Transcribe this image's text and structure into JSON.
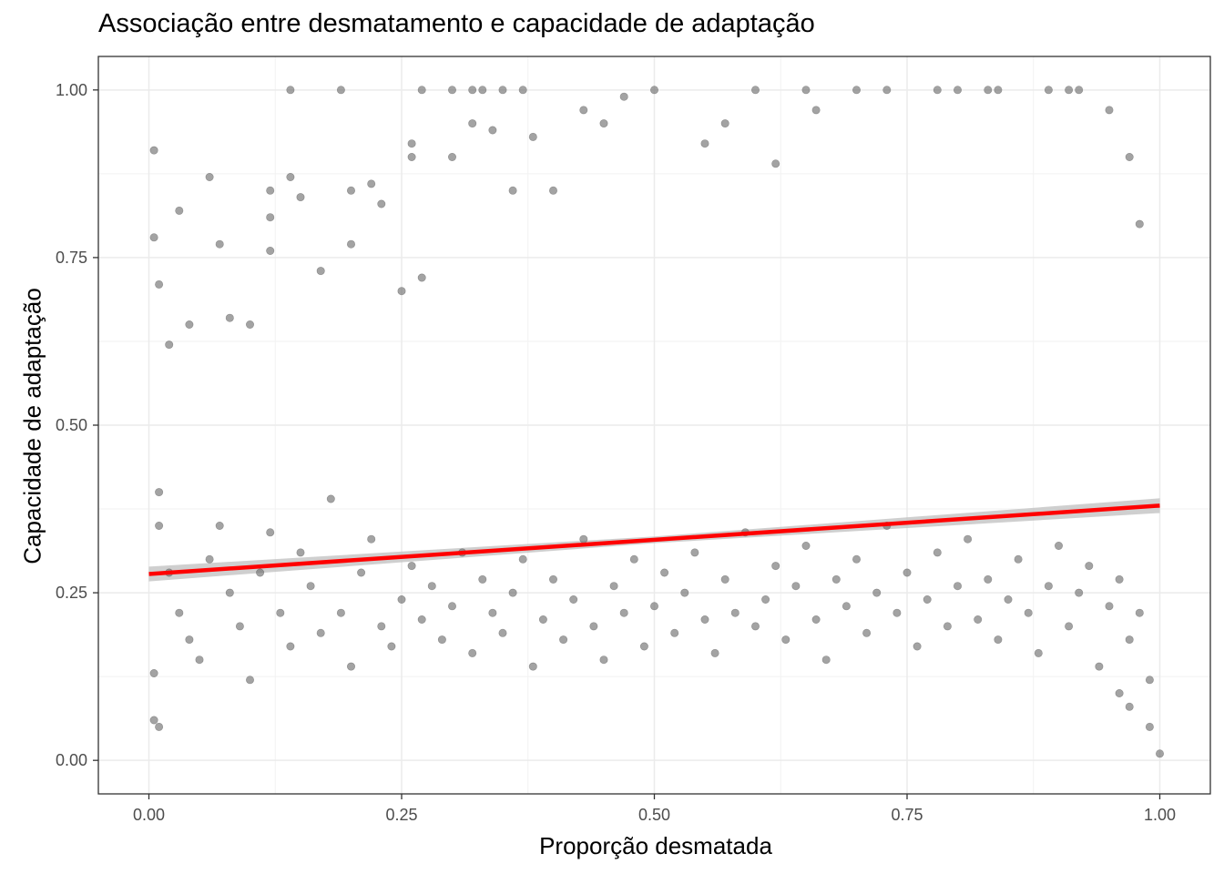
{
  "chart_data": {
    "type": "scatter",
    "title": "Associação entre desmatamento e capacidade de adaptação",
    "xlabel": "Proporção desmatada",
    "ylabel": "Capacidade de adaptação",
    "xlim": [
      -0.05,
      1.05
    ],
    "ylim": [
      -0.05,
      1.05
    ],
    "x_ticks": [
      0.0,
      0.25,
      0.5,
      0.75,
      1.0
    ],
    "x_tick_labels": [
      "0.00",
      "0.25",
      "0.50",
      "0.75",
      "1.00"
    ],
    "y_ticks": [
      0.0,
      0.25,
      0.5,
      0.75,
      1.0
    ],
    "y_tick_labels": [
      "0.00",
      "0.25",
      "0.50",
      "0.75",
      "1.00"
    ],
    "grid": true,
    "legend": "none",
    "point_color": "#666666",
    "point_opacity": 0.6,
    "trend_line": {
      "method": "linear",
      "color": "#ff0000",
      "ribbon_color": "#bfbfbf",
      "points": [
        {
          "x": 0.0,
          "y": 0.278
        },
        {
          "x": 1.0,
          "y": 0.38
        }
      ]
    },
    "series": [
      {
        "points": [
          [
            0.005,
            0.91
          ],
          [
            0.005,
            0.78
          ],
          [
            0.01,
            0.71
          ],
          [
            0.02,
            0.62
          ],
          [
            0.01,
            0.4
          ],
          [
            0.01,
            0.35
          ],
          [
            0.005,
            0.06
          ],
          [
            0.01,
            0.05
          ],
          [
            0.005,
            0.13
          ],
          [
            0.03,
            0.82
          ],
          [
            0.06,
            0.87
          ],
          [
            0.07,
            0.77
          ],
          [
            0.04,
            0.65
          ],
          [
            0.08,
            0.66
          ],
          [
            0.1,
            0.65
          ],
          [
            0.12,
            0.85
          ],
          [
            0.12,
            0.81
          ],
          [
            0.12,
            0.76
          ],
          [
            0.14,
            0.87
          ],
          [
            0.15,
            0.84
          ],
          [
            0.17,
            0.73
          ],
          [
            0.2,
            0.85
          ],
          [
            0.2,
            0.77
          ],
          [
            0.22,
            0.86
          ],
          [
            0.23,
            0.83
          ],
          [
            0.14,
            1.0
          ],
          [
            0.19,
            1.0
          ],
          [
            0.26,
            0.9
          ],
          [
            0.26,
            0.92
          ],
          [
            0.27,
            1.0
          ],
          [
            0.3,
            1.0
          ],
          [
            0.32,
            1.0
          ],
          [
            0.33,
            1.0
          ],
          [
            0.35,
            1.0
          ],
          [
            0.37,
            1.0
          ],
          [
            0.25,
            0.7
          ],
          [
            0.27,
            0.72
          ],
          [
            0.3,
            0.9
          ],
          [
            0.32,
            0.95
          ],
          [
            0.34,
            0.94
          ],
          [
            0.38,
            0.93
          ],
          [
            0.36,
            0.85
          ],
          [
            0.4,
            0.85
          ],
          [
            0.43,
            0.97
          ],
          [
            0.45,
            0.95
          ],
          [
            0.47,
            0.99
          ],
          [
            0.5,
            1.0
          ],
          [
            0.55,
            0.92
          ],
          [
            0.57,
            0.95
          ],
          [
            0.6,
            1.0
          ],
          [
            0.62,
            0.89
          ],
          [
            0.65,
            1.0
          ],
          [
            0.66,
            0.97
          ],
          [
            0.7,
            1.0
          ],
          [
            0.73,
            1.0
          ],
          [
            0.78,
            1.0
          ],
          [
            0.8,
            1.0
          ],
          [
            0.83,
            1.0
          ],
          [
            0.84,
            1.0
          ],
          [
            0.89,
            1.0
          ],
          [
            0.91,
            1.0
          ],
          [
            0.92,
            1.0
          ],
          [
            0.95,
            0.97
          ],
          [
            0.97,
            0.9
          ],
          [
            0.98,
            0.8
          ],
          [
            0.02,
            0.28
          ],
          [
            0.03,
            0.22
          ],
          [
            0.04,
            0.18
          ],
          [
            0.05,
            0.15
          ],
          [
            0.06,
            0.3
          ],
          [
            0.07,
            0.35
          ],
          [
            0.08,
            0.25
          ],
          [
            0.09,
            0.2
          ],
          [
            0.1,
            0.12
          ],
          [
            0.11,
            0.28
          ],
          [
            0.12,
            0.34
          ],
          [
            0.13,
            0.22
          ],
          [
            0.14,
            0.17
          ],
          [
            0.15,
            0.31
          ],
          [
            0.16,
            0.26
          ],
          [
            0.17,
            0.19
          ],
          [
            0.18,
            0.39
          ],
          [
            0.19,
            0.22
          ],
          [
            0.2,
            0.14
          ],
          [
            0.21,
            0.28
          ],
          [
            0.22,
            0.33
          ],
          [
            0.23,
            0.2
          ],
          [
            0.24,
            0.17
          ],
          [
            0.25,
            0.24
          ],
          [
            0.26,
            0.29
          ],
          [
            0.27,
            0.21
          ],
          [
            0.28,
            0.26
          ],
          [
            0.29,
            0.18
          ],
          [
            0.3,
            0.23
          ],
          [
            0.31,
            0.31
          ],
          [
            0.32,
            0.16
          ],
          [
            0.33,
            0.27
          ],
          [
            0.34,
            0.22
          ],
          [
            0.35,
            0.19
          ],
          [
            0.36,
            0.25
          ],
          [
            0.37,
            0.3
          ],
          [
            0.38,
            0.14
          ],
          [
            0.39,
            0.21
          ],
          [
            0.4,
            0.27
          ],
          [
            0.41,
            0.18
          ],
          [
            0.42,
            0.24
          ],
          [
            0.43,
            0.33
          ],
          [
            0.44,
            0.2
          ],
          [
            0.45,
            0.15
          ],
          [
            0.46,
            0.26
          ],
          [
            0.47,
            0.22
          ],
          [
            0.48,
            0.3
          ],
          [
            0.49,
            0.17
          ],
          [
            0.5,
            0.23
          ],
          [
            0.51,
            0.28
          ],
          [
            0.52,
            0.19
          ],
          [
            0.53,
            0.25
          ],
          [
            0.54,
            0.31
          ],
          [
            0.55,
            0.21
          ],
          [
            0.56,
            0.16
          ],
          [
            0.57,
            0.27
          ],
          [
            0.58,
            0.22
          ],
          [
            0.59,
            0.34
          ],
          [
            0.6,
            0.2
          ],
          [
            0.61,
            0.24
          ],
          [
            0.62,
            0.29
          ],
          [
            0.63,
            0.18
          ],
          [
            0.64,
            0.26
          ],
          [
            0.65,
            0.32
          ],
          [
            0.66,
            0.21
          ],
          [
            0.67,
            0.15
          ],
          [
            0.68,
            0.27
          ],
          [
            0.69,
            0.23
          ],
          [
            0.7,
            0.3
          ],
          [
            0.71,
            0.19
          ],
          [
            0.72,
            0.25
          ],
          [
            0.73,
            0.35
          ],
          [
            0.74,
            0.22
          ],
          [
            0.75,
            0.28
          ],
          [
            0.76,
            0.17
          ],
          [
            0.77,
            0.24
          ],
          [
            0.78,
            0.31
          ],
          [
            0.79,
            0.2
          ],
          [
            0.8,
            0.26
          ],
          [
            0.81,
            0.33
          ],
          [
            0.82,
            0.21
          ],
          [
            0.83,
            0.27
          ],
          [
            0.84,
            0.18
          ],
          [
            0.85,
            0.24
          ],
          [
            0.86,
            0.3
          ],
          [
            0.87,
            0.22
          ],
          [
            0.88,
            0.16
          ],
          [
            0.89,
            0.26
          ],
          [
            0.9,
            0.32
          ],
          [
            0.91,
            0.2
          ],
          [
            0.92,
            0.25
          ],
          [
            0.93,
            0.29
          ],
          [
            0.94,
            0.14
          ],
          [
            0.95,
            0.23
          ],
          [
            0.96,
            0.27
          ],
          [
            0.97,
            0.18
          ],
          [
            0.98,
            0.22
          ],
          [
            0.99,
            0.12
          ],
          [
            1.0,
            0.01
          ],
          [
            0.99,
            0.05
          ],
          [
            0.97,
            0.08
          ],
          [
            0.96,
            0.1
          ]
        ]
      }
    ]
  }
}
